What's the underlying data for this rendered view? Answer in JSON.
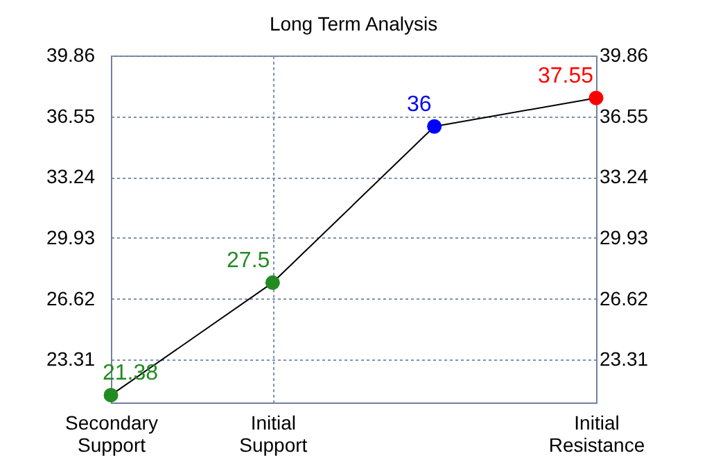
{
  "chart_data": {
    "type": "line",
    "title": "Long Term Analysis",
    "categories": [
      "Secondary Support",
      "Initial Support",
      null,
      "Initial Resistance"
    ],
    "series": [
      {
        "color": "#000000",
        "colors": [
          "#228b22",
          "#228b22",
          "#0000ff",
          "#ff0000"
        ],
        "values": [
          21.38,
          27.5,
          36,
          37.55
        ]
      }
    ],
    "ylim": [
      20.98,
      39.86
    ],
    "yticks": [
      23.31,
      26.62,
      29.93,
      33.24,
      36.55,
      39.86
    ],
    "y2lim": [
      20.98,
      39.86
    ],
    "y2ticks": [
      23.31,
      26.62,
      29.93,
      33.24,
      36.55,
      39.86
    ],
    "grid": true,
    "marker": "circle",
    "line_style": "solid",
    "data_labels": true
  }
}
